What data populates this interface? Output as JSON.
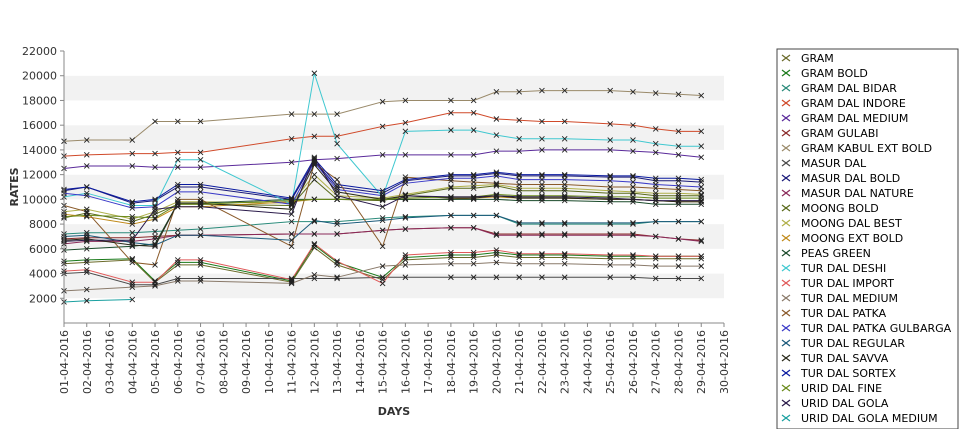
{
  "chart_data": {
    "type": "line",
    "title": "",
    "xlabel": "DAYS",
    "ylabel": "RATES",
    "ylim": [
      0,
      22000
    ],
    "y_ticks": [
      2000,
      4000,
      6000,
      8000,
      10000,
      12000,
      14000,
      16000,
      18000,
      20000,
      22000
    ],
    "x_ticks": [
      "01-04-2016",
      "02-04-2016",
      "03-04-2016",
      "04-04-2016",
      "05-04-2016",
      "06-04-2016",
      "07-04-2016",
      "08-04-2016",
      "09-04-2016",
      "10-04-2016",
      "11-04-2016",
      "12-04-2016",
      "13-04-2016",
      "14-04-2016",
      "15-04-2016",
      "16-04-2016",
      "17-04-2016",
      "18-04-2016",
      "19-04-2016",
      "20-04-2016",
      "21-04-2016",
      "22-04-2016",
      "23-04-2016",
      "24-04-2016",
      "25-04-2016",
      "26-04-2016",
      "27-04-2016",
      "28-04-2016",
      "29-04-2016",
      "30-04-2016"
    ],
    "grid": true,
    "legend_position": "right",
    "series": [
      {
        "name": "GRAM",
        "color": "#6b6b2a",
        "values": {
          "01-04-2016": 4800,
          "02-04-2016": 4900,
          "04-04-2016": 5100,
          "05-04-2016": 3300,
          "06-04-2016": 4700,
          "07-04-2016": 4700,
          "11-04-2016": 3300,
          "12-04-2016": 6100,
          "13-04-2016": 4700,
          "15-04-2016": 3500,
          "16-04-2016": 5100,
          "18-04-2016": 5300,
          "19-04-2016": 5300,
          "20-04-2016": 5500,
          "21-04-2016": 5300,
          "22-04-2016": 5300,
          "23-04-2016": 5300,
          "25-04-2016": 5200,
          "26-04-2016": 5200,
          "27-04-2016": 5200,
          "28-04-2016": 5200,
          "29-04-2016": 5200
        }
      },
      {
        "name": "GRAM BOLD",
        "color": "#1a7a1a",
        "values": {
          "01-04-2016": 5000,
          "02-04-2016": 5100,
          "04-04-2016": 5200,
          "05-04-2016": 3400,
          "06-04-2016": 4900,
          "07-04-2016": 4900,
          "11-04-2016": 3400,
          "12-04-2016": 6300,
          "13-04-2016": 4900,
          "15-04-2016": 3700,
          "16-04-2016": 5300,
          "18-04-2016": 5500,
          "19-04-2016": 5500,
          "20-04-2016": 5700,
          "21-04-2016": 5500,
          "22-04-2016": 5500,
          "23-04-2016": 5500,
          "25-04-2016": 5400,
          "26-04-2016": 5400,
          "27-04-2016": 5400,
          "28-04-2016": 5400,
          "29-04-2016": 5400
        }
      },
      {
        "name": "GRAM DAL BIDAR",
        "color": "#2a8a7a",
        "values": {
          "01-04-2016": 7200,
          "02-04-2016": 7300,
          "04-04-2016": 7300,
          "05-04-2016": 7400,
          "06-04-2016": 7500,
          "07-04-2016": 7600,
          "11-04-2016": 8200,
          "12-04-2016": 8200,
          "13-04-2016": 8200,
          "15-04-2016": 8500,
          "16-04-2016": 8600,
          "18-04-2016": 8700,
          "19-04-2016": 8700,
          "20-04-2016": 8700,
          "21-04-2016": 8000,
          "22-04-2016": 8000,
          "23-04-2016": 8000,
          "25-04-2016": 8000,
          "26-04-2016": 8000,
          "27-04-2016": 8200,
          "28-04-2016": 8200,
          "29-04-2016": 8200
        }
      },
      {
        "name": "GRAM DAL INDORE",
        "color": "#d04a2a",
        "values": {
          "01-04-2016": 13500,
          "02-04-2016": 13600,
          "04-04-2016": 13700,
          "05-04-2016": 13700,
          "06-04-2016": 13800,
          "07-04-2016": 13800,
          "11-04-2016": 14900,
          "12-04-2016": 15100,
          "13-04-2016": 15100,
          "15-04-2016": 15900,
          "16-04-2016": 16200,
          "18-04-2016": 17000,
          "19-04-2016": 17000,
          "20-04-2016": 16500,
          "21-04-2016": 16400,
          "22-04-2016": 16300,
          "23-04-2016": 16300,
          "25-04-2016": 16100,
          "26-04-2016": 16000,
          "27-04-2016": 15700,
          "28-04-2016": 15500,
          "29-04-2016": 15500
        }
      },
      {
        "name": "GRAM DAL MEDIUM",
        "color": "#5a2a9a",
        "values": {
          "01-04-2016": 12500,
          "02-04-2016": 12700,
          "04-04-2016": 12700,
          "05-04-2016": 12600,
          "06-04-2016": 12600,
          "07-04-2016": 12600,
          "11-04-2016": 13000,
          "12-04-2016": 13200,
          "13-04-2016": 13300,
          "15-04-2016": 13600,
          "16-04-2016": 13600,
          "18-04-2016": 13600,
          "19-04-2016": 13600,
          "20-04-2016": 13900,
          "21-04-2016": 13900,
          "22-04-2016": 14000,
          "23-04-2016": 14000,
          "25-04-2016": 14000,
          "26-04-2016": 13900,
          "27-04-2016": 13800,
          "28-04-2016": 13600,
          "29-04-2016": 13400
        }
      },
      {
        "name": "GRAM GULABI",
        "color": "#8a2a2a",
        "values": {
          "01-04-2016": 6800,
          "02-04-2016": 6900,
          "04-04-2016": 6900,
          "05-04-2016": 7000,
          "06-04-2016": 7100,
          "07-04-2016": 7100,
          "11-04-2016": 7200,
          "12-04-2016": 7200,
          "13-04-2016": 7200,
          "15-04-2016": 7500,
          "16-04-2016": 7600,
          "18-04-2016": 7700,
          "19-04-2016": 7700,
          "20-04-2016": 7200,
          "21-04-2016": 7200,
          "22-04-2016": 7200,
          "23-04-2016": 7200,
          "25-04-2016": 7200,
          "26-04-2016": 7200,
          "27-04-2016": 7000,
          "28-04-2016": 6800,
          "29-04-2016": 6700
        }
      },
      {
        "name": "GRAM KABUL EXT BOLD",
        "color": "#9a8a6a",
        "values": {
          "01-04-2016": 14700,
          "02-04-2016": 14800,
          "04-04-2016": 14800,
          "05-04-2016": 16300,
          "06-04-2016": 16300,
          "07-04-2016": 16300,
          "11-04-2016": 16900,
          "12-04-2016": 16900,
          "13-04-2016": 16900,
          "15-04-2016": 17900,
          "16-04-2016": 18000,
          "18-04-2016": 18000,
          "19-04-2016": 18000,
          "20-04-2016": 18700,
          "21-04-2016": 18700,
          "22-04-2016": 18800,
          "23-04-2016": 18800,
          "25-04-2016": 18800,
          "26-04-2016": 18700,
          "27-04-2016": 18600,
          "28-04-2016": 18500,
          "29-04-2016": 18400
        }
      },
      {
        "name": "MASUR DAL",
        "color": "#4a4a4a",
        "values": {
          "01-04-2016": 4000,
          "02-04-2016": 4100,
          "04-04-2016": 3100,
          "05-04-2016": 3100,
          "06-04-2016": 3600,
          "07-04-2016": 3600,
          "11-04-2016": 3600,
          "12-04-2016": 3600,
          "13-04-2016": 3600,
          "15-04-2016": 3700,
          "16-04-2016": 3700,
          "18-04-2016": 3700,
          "19-04-2016": 3700,
          "20-04-2016": 3700,
          "21-04-2016": 3700,
          "22-04-2016": 3700,
          "23-04-2016": 3700,
          "25-04-2016": 3700,
          "26-04-2016": 3700,
          "27-04-2016": 3600,
          "28-04-2016": 3600,
          "29-04-2016": 3600
        }
      },
      {
        "name": "MASUR DAL BOLD",
        "color": "#1a1a7a",
        "values": {
          "01-04-2016": 10700,
          "02-04-2016": 11000,
          "04-04-2016": 9700,
          "05-04-2016": 9900,
          "06-04-2016": 11000,
          "07-04-2016": 11000,
          "11-04-2016": 10000,
          "12-04-2016": 13100,
          "13-04-2016": 11000,
          "15-04-2016": 10500,
          "16-04-2016": 11500,
          "18-04-2016": 11900,
          "19-04-2016": 11900,
          "20-04-2016": 12100,
          "21-04-2016": 11900,
          "22-04-2016": 11900,
          "23-04-2016": 11900,
          "25-04-2016": 11800,
          "26-04-2016": 11800,
          "27-04-2016": 11500,
          "28-04-2016": 11500,
          "29-04-2016": 11400
        }
      },
      {
        "name": "MASUR DAL NATURE",
        "color": "#8a2a5a",
        "values": {
          "01-04-2016": 6400,
          "02-04-2016": 6600,
          "04-04-2016": 6600,
          "05-04-2016": 6800,
          "06-04-2016": 7100,
          "07-04-2016": 7100,
          "11-04-2016": 7200,
          "12-04-2016": 7200,
          "13-04-2016": 7200,
          "15-04-2016": 7500,
          "16-04-2016": 7600,
          "18-04-2016": 7700,
          "19-04-2016": 7700,
          "20-04-2016": 7100,
          "21-04-2016": 7100,
          "22-04-2016": 7100,
          "23-04-2016": 7100,
          "25-04-2016": 7100,
          "26-04-2016": 7100,
          "27-04-2016": 7000,
          "28-04-2016": 6800,
          "29-04-2016": 6600
        }
      },
      {
        "name": "MOONG BOLD",
        "color": "#5a6a1a",
        "values": {
          "01-04-2016": 8500,
          "02-04-2016": 8900,
          "04-04-2016": 8200,
          "05-04-2016": 8800,
          "06-04-2016": 9600,
          "07-04-2016": 9600,
          "11-04-2016": 9500,
          "12-04-2016": 11600,
          "13-04-2016": 10000,
          "15-04-2016": 9900,
          "16-04-2016": 10300,
          "18-04-2016": 10900,
          "19-04-2016": 10900,
          "20-04-2016": 11100,
          "21-04-2016": 10700,
          "22-04-2016": 10700,
          "23-04-2016": 10700,
          "25-04-2016": 10500,
          "26-04-2016": 10500,
          "27-04-2016": 10300,
          "28-04-2016": 10300,
          "29-04-2016": 10300
        }
      },
      {
        "name": "MOONG DAL BEST",
        "color": "#b0b04a",
        "values": {
          "01-04-2016": 9000,
          "02-04-2016": 9200,
          "04-04-2016": 8400,
          "05-04-2016": 9000,
          "06-04-2016": 9800,
          "07-04-2016": 9800,
          "11-04-2016": 9700,
          "12-04-2016": 12000,
          "13-04-2016": 10300,
          "15-04-2016": 10100,
          "16-04-2016": 10400,
          "18-04-2016": 11000,
          "19-04-2016": 11100,
          "20-04-2016": 11200,
          "21-04-2016": 10900,
          "22-04-2016": 10900,
          "23-04-2016": 10900,
          "25-04-2016": 10700,
          "26-04-2016": 10600,
          "27-04-2016": 10500,
          "28-04-2016": 10500,
          "29-04-2016": 10400
        }
      },
      {
        "name": "MOONG EXT BOLD",
        "color": "#c08a1a",
        "values": {
          "01-04-2016": 8800,
          "02-04-2016": 8600,
          "04-04-2016": 8000,
          "05-04-2016": 8400,
          "06-04-2016": 9400,
          "07-04-2016": 9400,
          "11-04-2016": 9800,
          "12-04-2016": 10000,
          "13-04-2016": 10000,
          "15-04-2016": 10000,
          "16-04-2016": 10000,
          "18-04-2016": 10000,
          "19-04-2016": 10100,
          "20-04-2016": 10200,
          "21-04-2016": 10100,
          "22-04-2016": 10100,
          "23-04-2016": 10100,
          "25-04-2016": 10000,
          "26-04-2016": 10000,
          "27-04-2016": 9900,
          "28-04-2016": 9800,
          "29-04-2016": 9800
        }
      },
      {
        "name": "PEAS GREEN",
        "color": "#1a4a2a",
        "values": {
          "01-04-2016": 5900,
          "02-04-2016": 6000,
          "04-04-2016": 6200,
          "05-04-2016": 6400,
          "06-04-2016": 9700,
          "07-04-2016": 9700,
          "11-04-2016": 10000,
          "12-04-2016": 10000,
          "13-04-2016": 10000,
          "15-04-2016": 10000,
          "16-04-2016": 10000,
          "18-04-2016": 10000,
          "19-04-2016": 10000,
          "20-04-2016": 10000,
          "21-04-2016": 9900,
          "22-04-2016": 9900,
          "23-04-2016": 9900,
          "25-04-2016": 9800,
          "26-04-2016": 9800,
          "27-04-2016": 9600,
          "28-04-2016": 9600,
          "29-04-2016": 9600
        }
      },
      {
        "name": "TUR DAL DESHI",
        "color": "#40c8d0",
        "values": {
          "01-04-2016": 10200,
          "02-04-2016": 10500,
          "04-04-2016": 9500,
          "05-04-2016": 9500,
          "06-04-2016": 13200,
          "07-04-2016": 13200,
          "11-04-2016": 9600,
          "12-04-2016": 20200,
          "13-04-2016": 14500,
          "15-04-2016": 10200,
          "16-04-2016": 15500,
          "18-04-2016": 15600,
          "19-04-2016": 15600,
          "20-04-2016": 15200,
          "21-04-2016": 14900,
          "22-04-2016": 14900,
          "23-04-2016": 14900,
          "25-04-2016": 14800,
          "26-04-2016": 14800,
          "27-04-2016": 14500,
          "28-04-2016": 14300,
          "29-04-2016": 14300
        }
      },
      {
        "name": "TUR DAL IMPORT",
        "color": "#e05a5a",
        "values": {
          "01-04-2016": 4200,
          "02-04-2016": 4300,
          "04-04-2016": 3300,
          "05-04-2016": 3300,
          "06-04-2016": 5100,
          "07-04-2016": 5100,
          "11-04-2016": 3500,
          "12-04-2016": 6400,
          "13-04-2016": 5000,
          "15-04-2016": 3200,
          "16-04-2016": 5500,
          "18-04-2016": 5700,
          "19-04-2016": 5700,
          "20-04-2016": 5900,
          "21-04-2016": 5600,
          "22-04-2016": 5600,
          "23-04-2016": 5600,
          "25-04-2016": 5500,
          "26-04-2016": 5500,
          "27-04-2016": 5400,
          "28-04-2016": 5400,
          "29-04-2016": 5400
        }
      },
      {
        "name": "TUR DAL MEDIUM",
        "color": "#8a7a6a",
        "values": {
          "01-04-2016": 2600,
          "02-04-2016": 2700,
          "04-04-2016": 2900,
          "05-04-2016": 3000,
          "06-04-2016": 3400,
          "07-04-2016": 3400,
          "11-04-2016": 3200,
          "12-04-2016": 3900,
          "13-04-2016": 3700,
          "15-04-2016": 4600,
          "16-04-2016": 4700,
          "18-04-2016": 4800,
          "19-04-2016": 4800,
          "20-04-2016": 4900,
          "21-04-2016": 4800,
          "22-04-2016": 4800,
          "23-04-2016": 4800,
          "25-04-2016": 4700,
          "26-04-2016": 4700,
          "27-04-2016": 4600,
          "28-04-2016": 4600,
          "29-04-2016": 4600
        }
      },
      {
        "name": "TUR DAL PATKA",
        "color": "#8a5a2a",
        "values": {
          "01-04-2016": 9500,
          "02-04-2016": 9000,
          "04-04-2016": 4900,
          "05-04-2016": 4700,
          "06-04-2016": 10000,
          "07-04-2016": 10000,
          "11-04-2016": 6200,
          "12-04-2016": 12900,
          "13-04-2016": 11600,
          "15-04-2016": 6200,
          "16-04-2016": 11800,
          "18-04-2016": 11500,
          "19-04-2016": 11400,
          "20-04-2016": 11300,
          "21-04-2016": 11200,
          "22-04-2016": 11200,
          "23-04-2016": 11200,
          "25-04-2016": 11000,
          "26-04-2016": 11000,
          "27-04-2016": 10900,
          "28-04-2016": 10800,
          "29-04-2016": 10700
        }
      },
      {
        "name": "TUR DAL PATKA GULBARGA",
        "color": "#3a3ac8",
        "values": {
          "01-04-2016": 10500,
          "02-04-2016": 10300,
          "04-04-2016": 9300,
          "05-04-2016": 9400,
          "06-04-2016": 10600,
          "07-04-2016": 10600,
          "11-04-2016": 9600,
          "12-04-2016": 13000,
          "13-04-2016": 10800,
          "15-04-2016": 10300,
          "16-04-2016": 11300,
          "18-04-2016": 11700,
          "19-04-2016": 11700,
          "20-04-2016": 11900,
          "21-04-2016": 11600,
          "22-04-2016": 11600,
          "23-04-2016": 11600,
          "25-04-2016": 11500,
          "26-04-2016": 11400,
          "27-04-2016": 11200,
          "28-04-2016": 11100,
          "29-04-2016": 11000
        }
      },
      {
        "name": "TUR DAL REGULAR",
        "color": "#1a5a7a",
        "values": {
          "01-04-2016": 7000,
          "02-04-2016": 7100,
          "04-04-2016": 6500,
          "05-04-2016": 6300,
          "06-04-2016": 7100,
          "07-04-2016": 7100,
          "11-04-2016": 6700,
          "12-04-2016": 8300,
          "13-04-2016": 8000,
          "15-04-2016": 8300,
          "16-04-2016": 8500,
          "18-04-2016": 8700,
          "19-04-2016": 8700,
          "20-04-2016": 8700,
          "21-04-2016": 8100,
          "22-04-2016": 8100,
          "23-04-2016": 8100,
          "25-04-2016": 8100,
          "26-04-2016": 8100,
          "27-04-2016": 8200,
          "28-04-2016": 8200,
          "29-04-2016": 8200
        }
      },
      {
        "name": "TUR DAL SAVVA",
        "color": "#2a2a1a",
        "values": {
          "01-04-2016": 6700,
          "02-04-2016": 6800,
          "04-04-2016": 6300,
          "05-04-2016": 6200,
          "06-04-2016": 9700,
          "07-04-2016": 9700,
          "11-04-2016": 9200,
          "12-04-2016": 12800,
          "13-04-2016": 10600,
          "15-04-2016": 10000,
          "16-04-2016": 10300,
          "18-04-2016": 10100,
          "19-04-2016": 10100,
          "20-04-2016": 10300,
          "21-04-2016": 10100,
          "22-04-2016": 10100,
          "23-04-2016": 10100,
          "25-04-2016": 10000,
          "26-04-2016": 10000,
          "27-04-2016": 9900,
          "28-04-2016": 9800,
          "29-04-2016": 9800
        }
      },
      {
        "name": "TUR DAL SORTEX",
        "color": "#0a1aa0",
        "values": {
          "01-04-2016": 10800,
          "02-04-2016": 11000,
          "04-04-2016": 9800,
          "05-04-2016": 10000,
          "06-04-2016": 11200,
          "07-04-2016": 11200,
          "11-04-2016": 10100,
          "12-04-2016": 13300,
          "13-04-2016": 11200,
          "15-04-2016": 10700,
          "16-04-2016": 11600,
          "18-04-2016": 12000,
          "19-04-2016": 12000,
          "20-04-2016": 12200,
          "21-04-2016": 12000,
          "22-04-2016": 12000,
          "23-04-2016": 12000,
          "25-04-2016": 11900,
          "26-04-2016": 11900,
          "27-04-2016": 11700,
          "28-04-2016": 11700,
          "29-04-2016": 11600
        }
      },
      {
        "name": "URID DAL FINE",
        "color": "#6a8a1a",
        "values": {
          "01-04-2016": 8600,
          "02-04-2016": 8700,
          "04-04-2016": 8600,
          "05-04-2016": 8500,
          "06-04-2016": 9600,
          "07-04-2016": 9600,
          "11-04-2016": 9900,
          "12-04-2016": 10000,
          "13-04-2016": 10000,
          "15-04-2016": 10000,
          "16-04-2016": 10100,
          "18-04-2016": 10200,
          "19-04-2016": 10200,
          "20-04-2016": 10400,
          "21-04-2016": 10300,
          "22-04-2016": 10300,
          "23-04-2016": 10300,
          "25-04-2016": 10200,
          "26-04-2016": 10200,
          "27-04-2016": 10100,
          "28-04-2016": 10100,
          "29-04-2016": 10100
        }
      },
      {
        "name": "URID DAL GOLA",
        "color": "#2a1a4a",
        "values": {
          "01-04-2016": 6600,
          "02-04-2016": 6700,
          "04-04-2016": 6700,
          "05-04-2016": 9200,
          "06-04-2016": 9400,
          "07-04-2016": 9400,
          "11-04-2016": 8800,
          "12-04-2016": 13400,
          "13-04-2016": 10300,
          "15-04-2016": 9400,
          "16-04-2016": 10300,
          "18-04-2016": 10200,
          "19-04-2016": 10200,
          "20-04-2016": 10300,
          "21-04-2016": 10200,
          "22-04-2016": 10200,
          "23-04-2016": 10200,
          "25-04-2016": 10100,
          "26-04-2016": 10000,
          "27-04-2016": 9900,
          "28-04-2016": 9900,
          "29-04-2016": 9900
        }
      },
      {
        "name": "URID DAL GOLA MEDIUM",
        "color": "#1aa0a0",
        "values": {
          "01-04-2016": 1700,
          "02-04-2016": 1800,
          "04-04-2016": 1900
        }
      }
    ]
  }
}
